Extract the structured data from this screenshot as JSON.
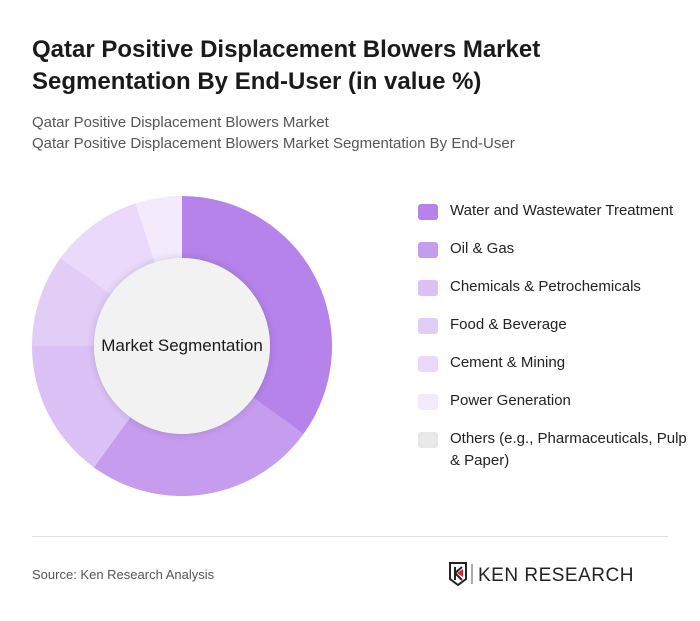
{
  "title": "Qatar Positive Displacement Blowers Market Segmentation By End-User (in value %)",
  "subtitle1": "Qatar Positive Displacement Blowers Market",
  "subtitle2": "Qatar Positive Displacement Blowers Market Segmentation By End-User",
  "source": "Source: Ken Research Analysis",
  "logo_text": "KEN RESEARCH",
  "chart_data": {
    "type": "pie",
    "variant": "donut",
    "center_label": "Market Segmentation",
    "legend_position": "right",
    "categories": [
      "Water and Wastewater Treatment",
      "Oil & Gas",
      "Chemicals & Petrochemicals",
      "Food & Beverage",
      "Cement & Mining",
      "Power Generation",
      "Others (e.g., Pharmaceuticals, Pulp & Paper)"
    ],
    "values": [
      35,
      25,
      15,
      10,
      10,
      5,
      0
    ],
    "colors": [
      "#b583ea",
      "#c59cee",
      "#dbc1f5",
      "#e2cdf7",
      "#ead9fa",
      "#f3ebfc",
      "#e8e8e8"
    ]
  }
}
